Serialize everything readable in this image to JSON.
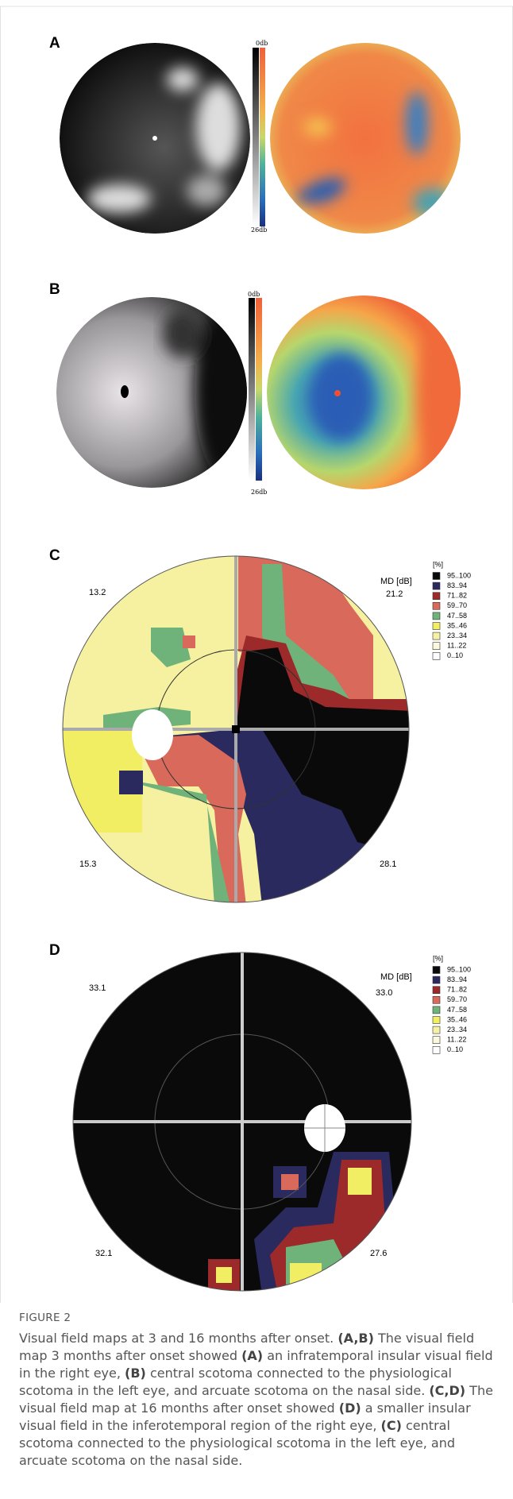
{
  "panels": {
    "a": {
      "label": "A",
      "scale_top": "0db",
      "scale_bottom": "26db"
    },
    "b": {
      "label": "B",
      "scale_top": "0db",
      "scale_bottom": "26db"
    },
    "c": {
      "label": "C",
      "md_label": "MD [dB]",
      "quadrants": [
        "13.2",
        "21.2",
        "15.3",
        "28.1"
      ]
    },
    "d": {
      "label": "D",
      "md_label": "MD [dB]",
      "quadrants": [
        "33.1",
        "33.0",
        "32.1",
        "27.6"
      ]
    }
  },
  "legend": {
    "title": "[%]",
    "items": [
      {
        "label": "95..100",
        "color": "#0a0a0a"
      },
      {
        "label": "83..94",
        "color": "#2a2a5e"
      },
      {
        "label": "71..82",
        "color": "#9c2a2a"
      },
      {
        "label": "59..70",
        "color": "#d9695a"
      },
      {
        "label": "47..58",
        "color": "#6fb27a"
      },
      {
        "label": "35..46",
        "color": "#f2ee63"
      },
      {
        "label": "23..34",
        "color": "#f7f1a6"
      },
      {
        "label": "11..22",
        "color": "#fbf8dc"
      },
      {
        "label": "0..10",
        "color": "#ffffff"
      }
    ]
  },
  "caption": {
    "label": "FIGURE 2",
    "segments": [
      "Visual field maps at 3 and 16 months after onset. ",
      "(A,B)",
      " The visual field map 3 months after onset showed ",
      "(A)",
      " an infratemporal insular visual field in the right eye, ",
      "(B)",
      " central scotoma connected to the physiological scotoma in the left eye, and arcuate scotoma on the nasal side. ",
      "(C,D)",
      " The visual field map at 16 months after onset showed ",
      "(D)",
      " a smaller insular visual field in the inferotemporal region of the right eye, ",
      "(C)",
      " central scotoma connected to the physiological scotoma in the left eye, and arcuate scotoma on the nasal side."
    ]
  }
}
